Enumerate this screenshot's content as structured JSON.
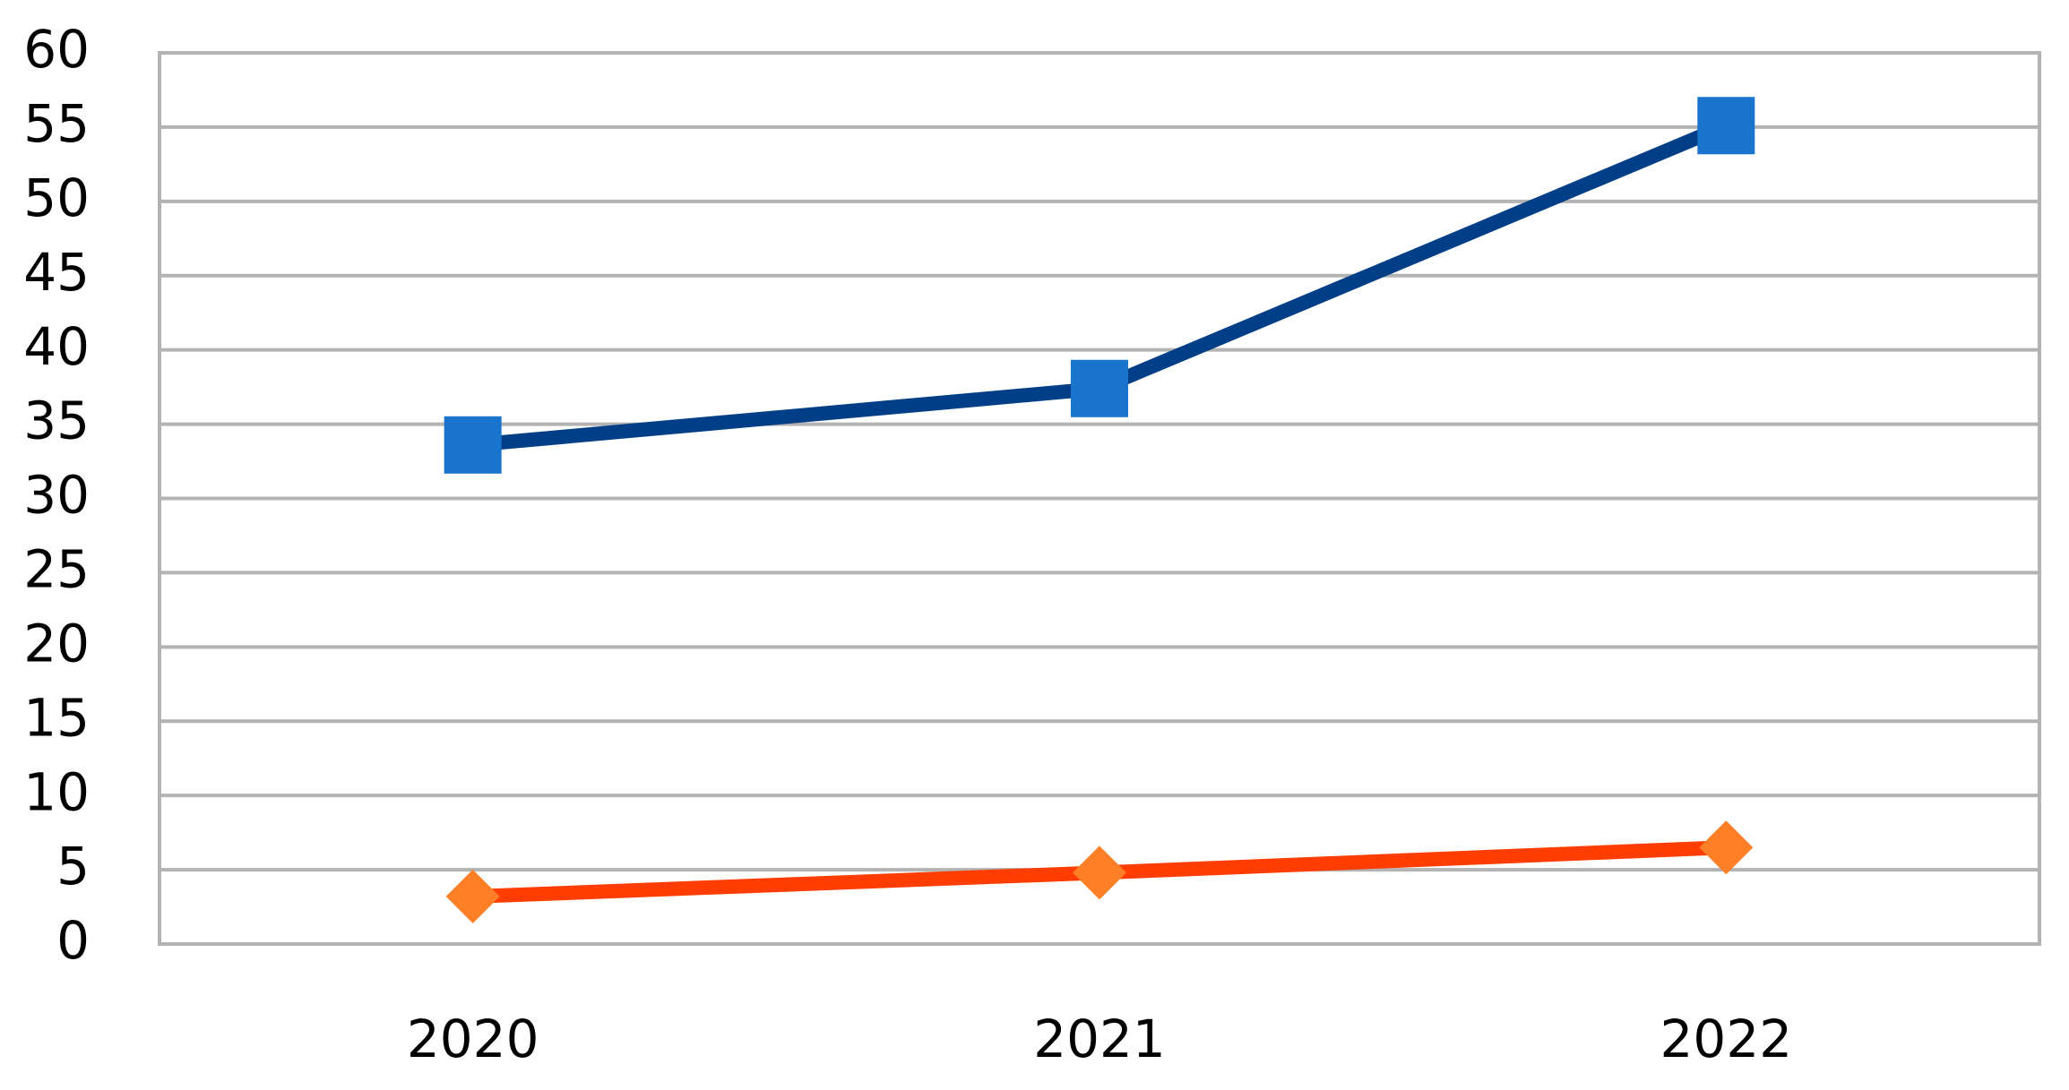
{
  "chart_data": {
    "type": "line",
    "categories": [
      "2020",
      "2021",
      "2022"
    ],
    "series": [
      {
        "color": "#003f87",
        "marker_color": "#1874cd",
        "marker": "square",
        "values": [
          33.6,
          37.4,
          55.1
        ]
      },
      {
        "color": "#ff3d00",
        "marker_color": "#ff7f27",
        "marker": "diamond",
        "values": [
          3.2,
          4.8,
          6.5
        ]
      }
    ],
    "ylim": [
      0,
      60
    ],
    "yticks": [
      0,
      5,
      10,
      15,
      20,
      25,
      30,
      35,
      40,
      45,
      50,
      55,
      60
    ],
    "grid": true
  }
}
